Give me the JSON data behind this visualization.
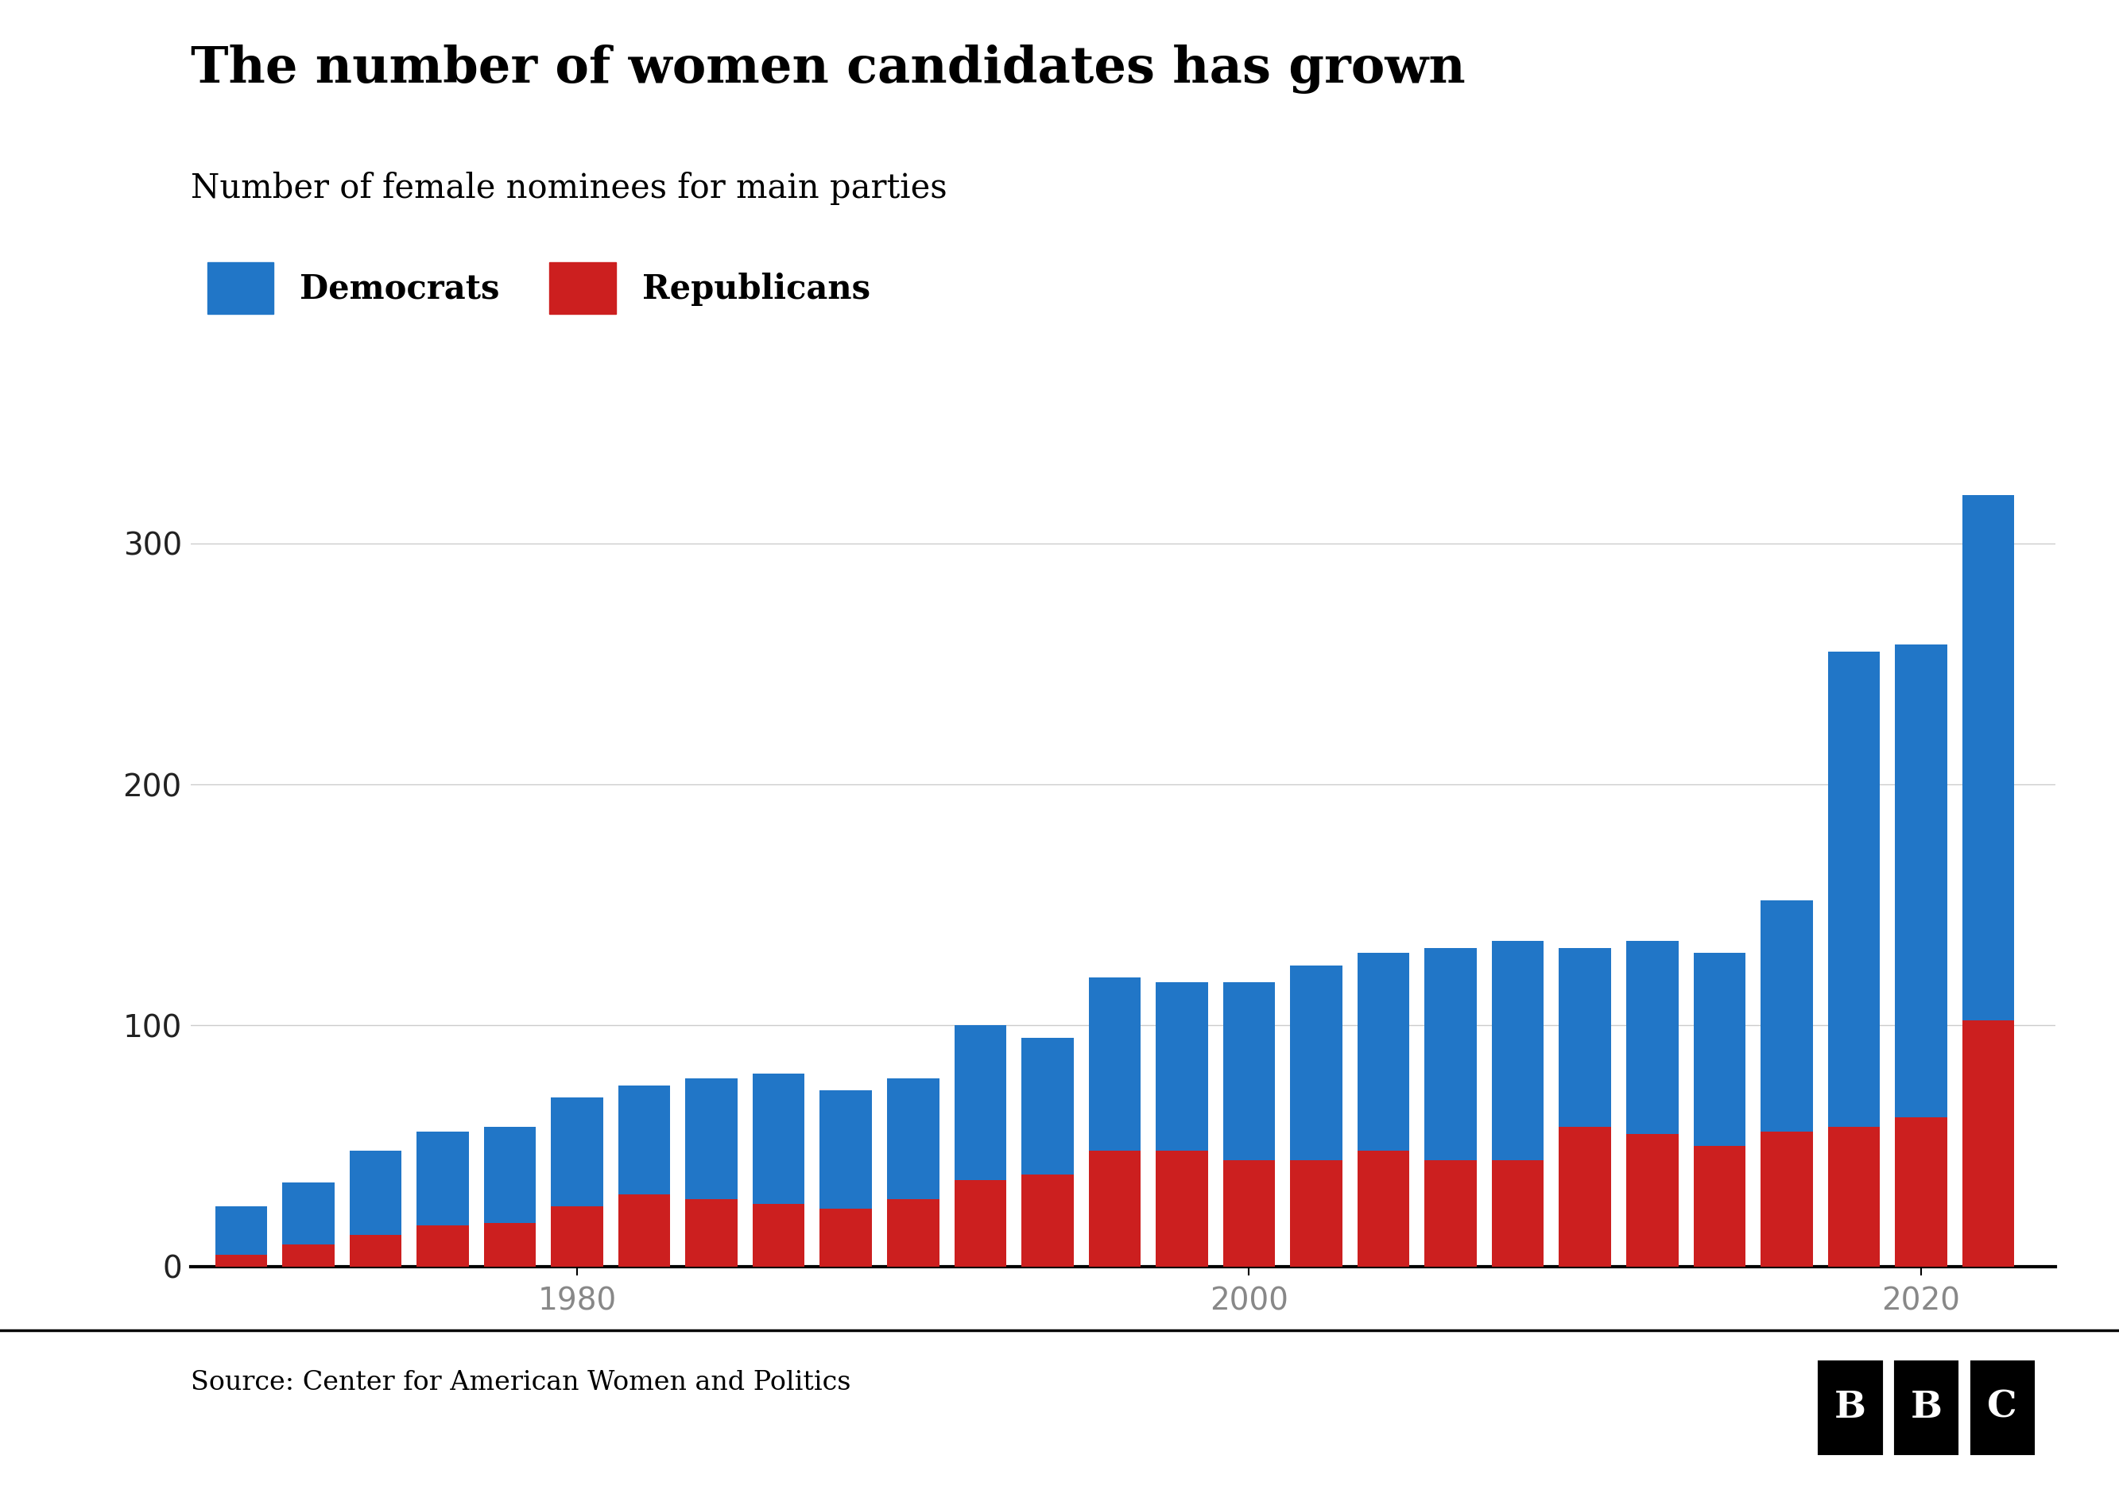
{
  "title": "The number of women candidates has grown",
  "subtitle": "Number of female nominees for main parties",
  "source": "Source: Center for American Women and Politics",
  "dem_label": "Democrats",
  "rep_label": "Republicans",
  "dem_color": "#2176C7",
  "rep_color": "#CC1F1F",
  "bg_color": "#FFFFFF",
  "years": [
    1970,
    1972,
    1974,
    1976,
    1978,
    1980,
    1982,
    1984,
    1986,
    1988,
    1990,
    1992,
    1994,
    1996,
    1998,
    2000,
    2002,
    2004,
    2006,
    2008,
    2010,
    2012,
    2014,
    2016,
    2018,
    2020,
    2022
  ],
  "total": [
    25,
    35,
    48,
    56,
    58,
    70,
    75,
    78,
    80,
    73,
    78,
    100,
    95,
    120,
    118,
    118,
    125,
    130,
    132,
    135,
    132,
    135,
    130,
    152,
    255,
    258,
    320
  ],
  "republicans": [
    5,
    9,
    13,
    17,
    18,
    25,
    30,
    28,
    26,
    24,
    28,
    36,
    38,
    48,
    48,
    44,
    44,
    48,
    44,
    44,
    58,
    55,
    50,
    56,
    58,
    62,
    102
  ],
  "ylim": [
    0,
    340
  ],
  "yticks": [
    0,
    100,
    200,
    300
  ],
  "xtick_years": [
    1980,
    2000,
    2020
  ],
  "title_fontsize": 46,
  "subtitle_fontsize": 30,
  "legend_fontsize": 30,
  "tick_fontsize": 28,
  "source_fontsize": 24,
  "bar_width": 1.55
}
